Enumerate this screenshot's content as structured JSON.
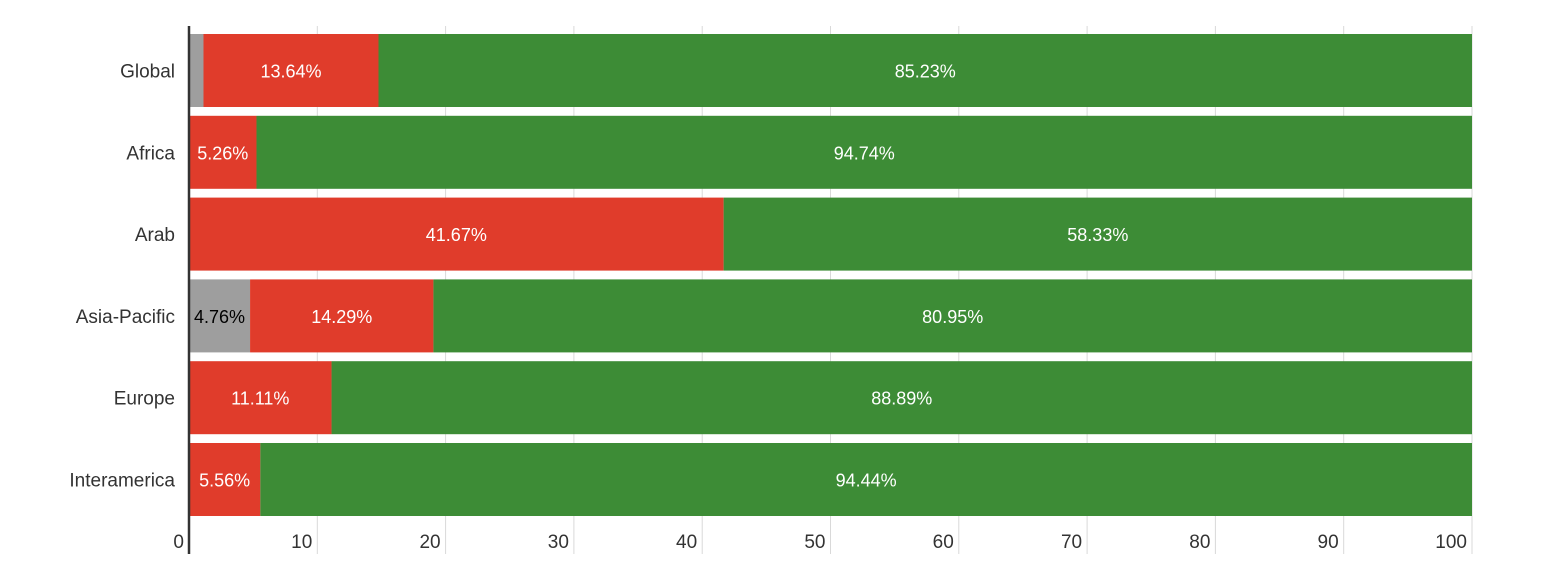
{
  "chart_data": {
    "type": "bar",
    "orientation": "horizontal",
    "stacked": true,
    "categories": [
      "Global",
      "Africa",
      "Arab",
      "Asia-Pacific",
      "Europe",
      "Interamerica"
    ],
    "series": [
      {
        "color": "#9e9e9e",
        "label_color": "#000000",
        "values": [
          1.13,
          0,
          0,
          4.76,
          0,
          0
        ],
        "labels": [
          "",
          "",
          "",
          "4.76%",
          "",
          ""
        ]
      },
      {
        "color": "#e03c2b",
        "label_color": "#ffffff",
        "values": [
          13.64,
          5.26,
          41.67,
          14.29,
          11.11,
          5.56
        ],
        "labels": [
          "13.64%",
          "5.26%",
          "41.67%",
          "14.29%",
          "11.11%",
          "5.56%"
        ]
      },
      {
        "color": "#3d8c36",
        "label_color": "#ffffff",
        "values": [
          85.23,
          94.74,
          58.33,
          80.95,
          88.89,
          94.44
        ],
        "labels": [
          "85.23%",
          "94.74%",
          "58.33%",
          "80.95%",
          "88.89%",
          "94.44%"
        ]
      }
    ],
    "x_ticks": [
      "0",
      "10",
      "20",
      "30",
      "40",
      "50",
      "60",
      "70",
      "80",
      "90",
      "100"
    ],
    "xlim": [
      0,
      100
    ],
    "grid": true,
    "legend": "none",
    "title": "",
    "xlabel": "",
    "ylabel": ""
  }
}
